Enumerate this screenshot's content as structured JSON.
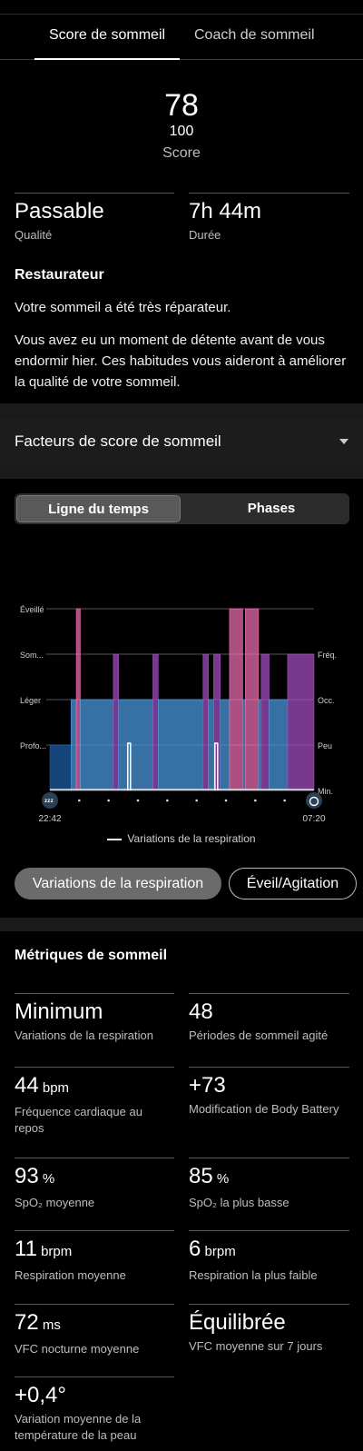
{
  "tabs": [
    {
      "label": "Score de sommeil",
      "active": true
    },
    {
      "label": "Coach de sommeil",
      "active": false
    }
  ],
  "score": {
    "value": "78",
    "max": "100",
    "label": "Score"
  },
  "quality": {
    "value": "Passable",
    "label": "Qualité"
  },
  "duration": {
    "value": "7h 44m",
    "label": "Durée"
  },
  "insight": {
    "title": "Restaurateur",
    "line1": "Votre sommeil a été très réparateur.",
    "line2": "Vous avez eu un moment de détente avant de vous endormir hier. Ces habitudes vous aideront à améliorer la qualité de votre sommeil."
  },
  "factors": {
    "label": "Facteurs de score de sommeil"
  },
  "segment": {
    "timeline": "Ligne du temps",
    "phases": "Phases"
  },
  "chart_data": {
    "type": "area",
    "title": "",
    "start_label": "22:42",
    "end_label": "07:20",
    "left_axis": [
      "Éveillé",
      "Som...",
      "Léger",
      "Profo..."
    ],
    "right_axis": [
      "Fréq.",
      "Occ.",
      "Peu",
      "Min."
    ],
    "stage_colors": {
      "awake": "#ee6fb4",
      "rem": "#a44fc1",
      "light": "#4c9be0",
      "deep": "#1c5ea6"
    },
    "legend": "Variations de la respiration",
    "stages": [
      {
        "stage": "deep",
        "t0": 0.0,
        "t1": 0.08
      },
      {
        "stage": "light",
        "t0": 0.08,
        "t1": 0.1
      },
      {
        "stage": "awake",
        "t0": 0.1,
        "t1": 0.115
      },
      {
        "stage": "light",
        "t0": 0.115,
        "t1": 0.24
      },
      {
        "stage": "rem",
        "t0": 0.24,
        "t1": 0.26
      },
      {
        "stage": "light",
        "t0": 0.26,
        "t1": 0.39
      },
      {
        "stage": "rem",
        "t0": 0.39,
        "t1": 0.41
      },
      {
        "stage": "light",
        "t0": 0.41,
        "t1": 0.58
      },
      {
        "stage": "rem",
        "t0": 0.58,
        "t1": 0.6
      },
      {
        "stage": "light",
        "t0": 0.6,
        "t1": 0.62
      },
      {
        "stage": "rem",
        "t0": 0.62,
        "t1": 0.645
      },
      {
        "stage": "light",
        "t0": 0.645,
        "t1": 0.68
      },
      {
        "stage": "awake",
        "t0": 0.68,
        "t1": 0.73
      },
      {
        "stage": "light",
        "t0": 0.73,
        "t1": 0.74
      },
      {
        "stage": "awake",
        "t0": 0.74,
        "t1": 0.79
      },
      {
        "stage": "light",
        "t0": 0.79,
        "t1": 0.8
      },
      {
        "stage": "rem",
        "t0": 0.8,
        "t1": 0.83
      },
      {
        "stage": "light",
        "t0": 0.83,
        "t1": 0.9
      },
      {
        "stage": "rem",
        "t0": 0.9,
        "t1": 1.0
      }
    ],
    "breathing_events": [
      0.3,
      0.63
    ],
    "breathing_level": "Min."
  },
  "toggles": {
    "breathing": "Variations de la respiration",
    "restless": "Éveil/Agitation"
  },
  "metrics": {
    "title": "Métriques de sommeil",
    "items": [
      {
        "value": "Minimum",
        "unit": "",
        "label": "Variations de la respiration"
      },
      {
        "value": "48",
        "unit": "",
        "label": "Périodes de sommeil agité"
      },
      {
        "value": "44",
        "unit": "bpm",
        "label": "Fréquence cardiaque au repos"
      },
      {
        "value": "+73",
        "unit": "",
        "label": "Modification de Body Battery"
      },
      {
        "value": "93",
        "unit": "%",
        "label": "SpO₂ moyenne"
      },
      {
        "value": "85",
        "unit": "%",
        "label": "SpO₂ la plus basse"
      },
      {
        "value": "11",
        "unit": "brpm",
        "label": "Respiration moyenne"
      },
      {
        "value": "6",
        "unit": "brpm",
        "label": "Respiration la plus faible"
      },
      {
        "value": "72",
        "unit": "ms",
        "label": "VFC nocturne moyenne"
      },
      {
        "value": "Équilibrée",
        "unit": "",
        "label": "VFC moyenne sur 7 jours"
      },
      {
        "value": "+0,4°",
        "unit": "",
        "label": "Variation moyenne de la température de la peau"
      }
    ]
  }
}
